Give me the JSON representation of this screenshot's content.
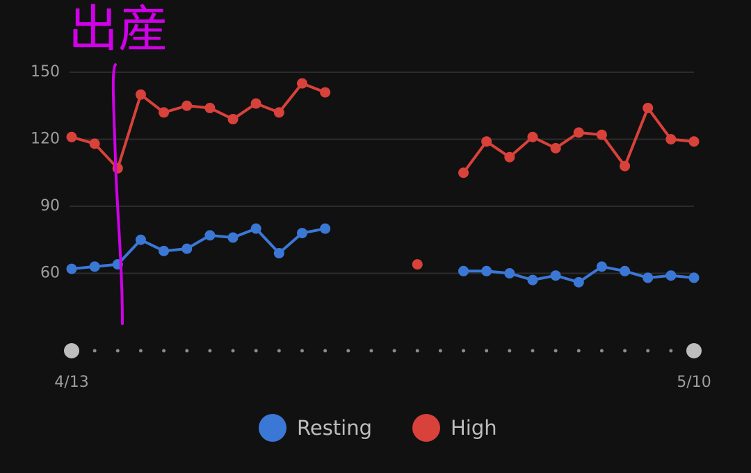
{
  "chart_data": {
    "type": "line",
    "annotation": "出産",
    "categories": [
      "4/13",
      null,
      null,
      null,
      null,
      null,
      null,
      null,
      null,
      null,
      null,
      null,
      null,
      null,
      null,
      null,
      null,
      null,
      null,
      null,
      null,
      null,
      null,
      null,
      null,
      null,
      null,
      "5/10"
    ],
    "series": [
      {
        "name": "Resting",
        "color": "#3b78d6",
        "values": [
          62,
          63,
          64,
          75,
          70,
          71,
          77,
          76,
          80,
          69,
          78,
          80,
          null,
          null,
          null,
          null,
          null,
          61,
          61,
          60,
          57,
          59,
          56,
          63,
          61,
          58,
          59,
          58
        ]
      },
      {
        "name": "High",
        "color": "#d9413b",
        "values": [
          121,
          118,
          107,
          140,
          132,
          135,
          134,
          129,
          136,
          132,
          145,
          141,
          null,
          null,
          null,
          64,
          null,
          105,
          119,
          112,
          121,
          116,
          123,
          122,
          108,
          134,
          120,
          119
        ]
      }
    ],
    "ylim": [
      30,
      150
    ],
    "yticks": [
      60,
      90,
      120,
      150
    ],
    "grid": true
  }
}
